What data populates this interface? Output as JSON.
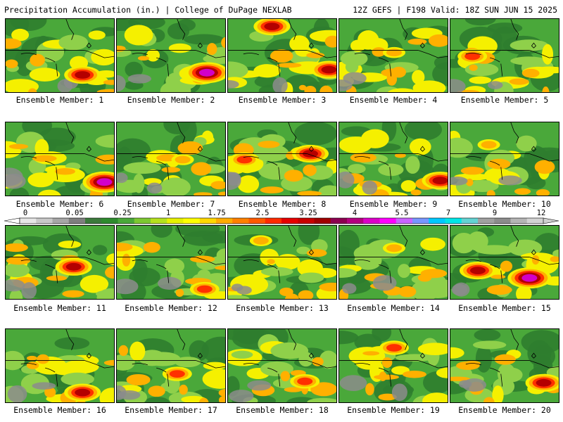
{
  "header": {
    "left": "Precipitation Accumulation (in.) | College of DuPage NEXLAB",
    "right": "12Z GEFS | F198 Valid: 18Z SUN JUN 15 2025"
  },
  "panels": [
    {
      "label": "Ensemble Member: 1"
    },
    {
      "label": "Ensemble Member: 2"
    },
    {
      "label": "Ensemble Member: 3"
    },
    {
      "label": "Ensemble Member: 4"
    },
    {
      "label": "Ensemble Member: 5"
    },
    {
      "label": "Ensemble Member: 6"
    },
    {
      "label": "Ensemble Member: 7"
    },
    {
      "label": "Ensemble Member: 8"
    },
    {
      "label": "Ensemble Member: 9"
    },
    {
      "label": "Ensemble Member: 10"
    },
    {
      "label": "Ensemble Member: 11"
    },
    {
      "label": "Ensemble Member: 12"
    },
    {
      "label": "Ensemble Member: 13"
    },
    {
      "label": "Ensemble Member: 14"
    },
    {
      "label": "Ensemble Member: 15"
    },
    {
      "label": "Ensemble Member: 16"
    },
    {
      "label": "Ensemble Member: 17"
    },
    {
      "label": "Ensemble Member: 18"
    },
    {
      "label": "Ensemble Member: 19"
    },
    {
      "label": "Ensemble Member: 20"
    }
  ],
  "colorbar": {
    "ticks": [
      "0",
      "0.05",
      "0.25",
      "1",
      "1.75",
      "2.5",
      "3.25",
      "4",
      "5.5",
      "7",
      "9",
      "12"
    ],
    "colors": [
      "#e6e6e6",
      "#c8c8c8",
      "#a6a6a6",
      "#7f7f7f",
      "#3c7a3c",
      "#2e8b2e",
      "#4aa83a",
      "#7dc832",
      "#b4e01e",
      "#e6f000",
      "#ffff00",
      "#ffd700",
      "#ffaa00",
      "#ff8000",
      "#ff5a00",
      "#ff2a00",
      "#e60000",
      "#c80000",
      "#a00000",
      "#8c0050",
      "#b4007f",
      "#dc00c8",
      "#ff00ff",
      "#c864ff",
      "#7896ff",
      "#00c8ff",
      "#00e6e6",
      "#64d2d2",
      "#a0a0a0",
      "#8c8c8c",
      "#b4b4b4",
      "#d2d2d2"
    ]
  },
  "palette": {
    "green_dark": "#2f7d2f",
    "green": "#4aa83a",
    "green_light": "#8fd04a",
    "yellow": "#f5f000",
    "orange": "#ffb000",
    "red": "#ff3000",
    "dark_red": "#b40000",
    "magenta": "#d200c8",
    "cyan": "#50e6e6",
    "gray": "#8c8c8c"
  }
}
